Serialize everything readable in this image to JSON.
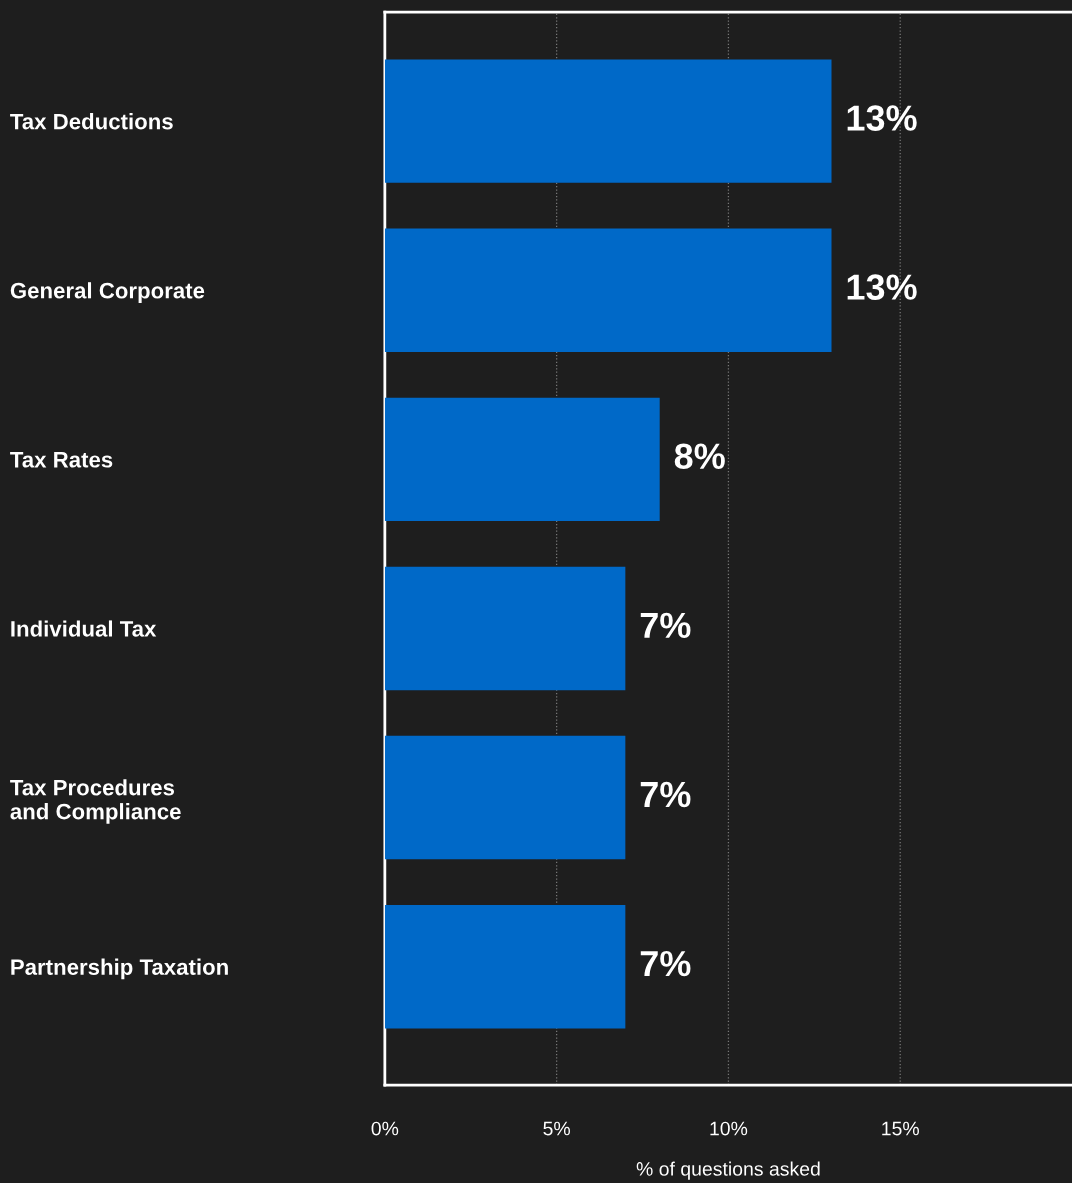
{
  "chart_data": {
    "type": "bar",
    "orientation": "horizontal",
    "categories": [
      "Tax Deductions",
      "General Corporate",
      "Tax Rates",
      "Individual Tax",
      "Tax Procedures\nand Compliance",
      "Partnership Taxation"
    ],
    "values": [
      13,
      13,
      8,
      7,
      7,
      7
    ],
    "value_labels": [
      "13%",
      "13%",
      "8%",
      "7%",
      "7%",
      "7%"
    ],
    "color": "#0069c8",
    "xlim": [
      0,
      20
    ],
    "xticks": [
      {
        "value": 0,
        "label": "0%"
      },
      {
        "value": 5,
        "label": "5%"
      },
      {
        "value": 10,
        "label": "10%"
      },
      {
        "value": 15,
        "label": "15%"
      }
    ],
    "xlabel": "% of questions asked",
    "grid": "x"
  }
}
